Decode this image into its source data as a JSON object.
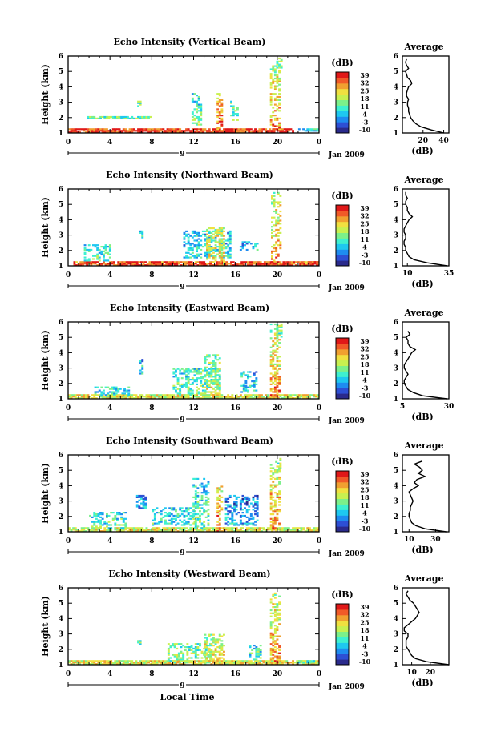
{
  "figure": {
    "bottom_label": "Local Time",
    "date_label": "Jan 2009",
    "day_label": "9",
    "colorbar_unit": "(dB)",
    "colorbar_ticks": [
      "39",
      "32",
      "25",
      "18",
      "11",
      "4",
      "-3",
      "-10"
    ],
    "colorscale": [
      "#2a2a8c",
      "#2d4fd4",
      "#1e8cf0",
      "#1ec8f0",
      "#3ef0d0",
      "#7cf08a",
      "#c8f050",
      "#f0e040",
      "#f0a030",
      "#f05a28",
      "#e01818"
    ],
    "avg_title": "Average",
    "avg_xlabel": "(dB)"
  },
  "chart_data": [
    {
      "type": "heatmap",
      "title": "Echo Intensity (Vertical Beam)",
      "ylabel": "Height (km)",
      "xticks": [
        "0",
        "4",
        "8",
        "12",
        "16",
        "20",
        "0"
      ],
      "yticks": [
        "1",
        "2",
        "3",
        "4",
        "5",
        "6"
      ],
      "xlim": [
        0,
        24
      ],
      "ylim": [
        1,
        6
      ],
      "clim": [
        -10,
        39
      ],
      "features": [
        {
          "t0": 0.0,
          "t1": 21.5,
          "h0": 1.0,
          "h1": 1.3,
          "db": 35
        },
        {
          "t0": 1.6,
          "t1": 8.0,
          "h0": 1.9,
          "h1": 2.1,
          "db": 13
        },
        {
          "t0": 6.6,
          "t1": 6.9,
          "h0": 2.7,
          "h1": 3.2,
          "db": 15
        },
        {
          "t0": 11.8,
          "t1": 12.6,
          "h0": 1.5,
          "h1": 3.6,
          "db": 14
        },
        {
          "t0": 14.2,
          "t1": 14.7,
          "h0": 1.0,
          "h1": 3.6,
          "db": 33
        },
        {
          "t0": 15.5,
          "t1": 16.2,
          "h0": 1.8,
          "h1": 3.1,
          "db": 14
        },
        {
          "t0": 19.3,
          "t1": 20.1,
          "h0": 1.1,
          "h1": 5.3,
          "db": 30
        },
        {
          "t0": 19.9,
          "t1": 20.4,
          "h0": 5.2,
          "h1": 5.8,
          "db": 16
        },
        {
          "t0": 22.0,
          "t1": 24.0,
          "h0": 1.1,
          "h1": 1.3,
          "db": 8
        }
      ],
      "average": {
        "xlim": [
          0,
          45
        ],
        "xticks": [
          "20",
          "40"
        ],
        "ylim": [
          1,
          6
        ],
        "height": [
          1.0,
          1.2,
          1.4,
          1.6,
          1.8,
          2.0,
          2.2,
          2.4,
          2.6,
          2.8,
          3.0,
          3.2,
          3.4,
          3.6,
          3.8,
          4.0,
          4.2,
          4.4,
          4.6,
          4.8,
          5.0,
          5.2,
          5.4,
          5.6,
          5.8
        ],
        "db": [
          40,
          28,
          18,
          13,
          10,
          8,
          7,
          6,
          6,
          5,
          5,
          6,
          4,
          4,
          5,
          6,
          9,
          8,
          5,
          4,
          3,
          6,
          4,
          3,
          4
        ]
      }
    },
    {
      "type": "heatmap",
      "title": "Echo Intensity (Northward Beam)",
      "ylabel": "Height (km)",
      "xticks": [
        "0",
        "4",
        "8",
        "12",
        "16",
        "20",
        "0"
      ],
      "yticks": [
        "1",
        "2",
        "3",
        "4",
        "5",
        "6"
      ],
      "xlim": [
        0,
        24
      ],
      "ylim": [
        1,
        6
      ],
      "clim": [
        -10,
        39
      ],
      "features": [
        {
          "t0": 0.5,
          "t1": 24.0,
          "h0": 1.0,
          "h1": 1.3,
          "db": 34
        },
        {
          "t0": 1.5,
          "t1": 4.0,
          "h0": 1.3,
          "h1": 2.4,
          "db": 12
        },
        {
          "t0": 6.8,
          "t1": 7.1,
          "h0": 2.5,
          "h1": 3.3,
          "db": 8
        },
        {
          "t0": 11.0,
          "t1": 15.5,
          "h0": 1.5,
          "h1": 3.3,
          "db": 9
        },
        {
          "t0": 13.2,
          "t1": 14.8,
          "h0": 1.0,
          "h1": 3.5,
          "db": 24
        },
        {
          "t0": 16.0,
          "t1": 18.0,
          "h0": 2.0,
          "h1": 2.6,
          "db": 6
        },
        {
          "t0": 19.4,
          "t1": 20.2,
          "h0": 1.1,
          "h1": 5.7,
          "db": 30
        },
        {
          "t0": 22.5,
          "t1": 24.0,
          "h0": 1.1,
          "h1": 1.3,
          "db": 32
        }
      ],
      "average": {
        "xlim": [
          7,
          35
        ],
        "xticks": [
          "10",
          "35"
        ],
        "ylim": [
          1,
          6
        ],
        "height": [
          1.0,
          1.2,
          1.4,
          1.6,
          1.8,
          2.0,
          2.2,
          2.4,
          2.6,
          2.8,
          3.0,
          3.2,
          3.4,
          3.6,
          3.8,
          4.0,
          4.2,
          4.4,
          4.6,
          4.8,
          5.0,
          5.2,
          5.4,
          5.6,
          5.8
        ],
        "db": [
          34,
          22,
          14,
          11,
          10,
          9,
          9,
          8,
          8,
          9,
          9,
          8,
          8,
          9,
          10,
          11,
          13,
          11,
          10,
          10,
          9,
          9,
          10,
          9,
          9
        ]
      }
    },
    {
      "type": "heatmap",
      "title": "Echo Intensity (Eastward Beam)",
      "ylabel": "Height (km)",
      "xticks": [
        "0",
        "4",
        "8",
        "12",
        "16",
        "20",
        "0"
      ],
      "yticks": [
        "1",
        "2",
        "3",
        "4",
        "5",
        "6"
      ],
      "xlim": [
        0,
        24
      ],
      "ylim": [
        1,
        6
      ],
      "clim": [
        -10,
        39
      ],
      "features": [
        {
          "t0": 0.0,
          "t1": 24.0,
          "h0": 1.0,
          "h1": 1.3,
          "db": 22
        },
        {
          "t0": 2.5,
          "t1": 5.8,
          "h0": 1.2,
          "h1": 1.8,
          "db": 10
        },
        {
          "t0": 6.8,
          "t1": 7.1,
          "h0": 2.6,
          "h1": 3.6,
          "db": 6
        },
        {
          "t0": 10.0,
          "t1": 14.5,
          "h0": 1.2,
          "h1": 3.0,
          "db": 14
        },
        {
          "t0": 13.0,
          "t1": 14.5,
          "h0": 1.2,
          "h1": 3.9,
          "db": 20
        },
        {
          "t0": 16.5,
          "t1": 18.0,
          "h0": 1.4,
          "h1": 2.8,
          "db": 9
        },
        {
          "t0": 19.3,
          "t1": 20.2,
          "h0": 1.1,
          "h1": 5.8,
          "db": 30
        },
        {
          "t0": 19.9,
          "t1": 20.4,
          "h0": 5.0,
          "h1": 5.8,
          "db": 16
        }
      ],
      "average": {
        "xlim": [
          5,
          30
        ],
        "xticks": [
          "5",
          "30"
        ],
        "ylim": [
          1,
          6
        ],
        "height": [
          1.0,
          1.2,
          1.4,
          1.6,
          1.8,
          2.0,
          2.2,
          2.4,
          2.6,
          2.8,
          3.0,
          3.2,
          3.4,
          3.6,
          3.8,
          4.0,
          4.2,
          4.4,
          4.6,
          4.8,
          5.0,
          5.2,
          5.4
        ],
        "db": [
          29,
          16,
          11,
          8,
          7,
          6,
          6,
          7,
          8,
          7,
          6,
          6,
          7,
          8,
          9,
          10,
          12,
          9,
          8,
          8,
          7,
          9,
          8
        ]
      }
    },
    {
      "type": "heatmap",
      "title": "Echo Intensity (Southward Beam)",
      "ylabel": "Height (km)",
      "xticks": [
        "0",
        "4",
        "8",
        "12",
        "16",
        "20",
        "0"
      ],
      "yticks": [
        "1",
        "2",
        "3",
        "4",
        "5",
        "6"
      ],
      "xlim": [
        0,
        24
      ],
      "ylim": [
        1,
        6
      ],
      "clim": [
        -10,
        39
      ],
      "features": [
        {
          "t0": 0.0,
          "t1": 24.0,
          "h0": 1.0,
          "h1": 1.3,
          "db": 21
        },
        {
          "t0": 2.0,
          "t1": 5.5,
          "h0": 1.2,
          "h1": 2.3,
          "db": 12
        },
        {
          "t0": 6.5,
          "t1": 7.5,
          "h0": 2.5,
          "h1": 3.4,
          "db": 5
        },
        {
          "t0": 8.0,
          "t1": 12.0,
          "h0": 1.4,
          "h1": 2.6,
          "db": 10
        },
        {
          "t0": 11.9,
          "t1": 13.4,
          "h0": 1.2,
          "h1": 4.5,
          "db": 14
        },
        {
          "t0": 14.2,
          "t1": 14.7,
          "h0": 1.0,
          "h1": 4.0,
          "db": 30
        },
        {
          "t0": 15.0,
          "t1": 18.0,
          "h0": 1.4,
          "h1": 3.4,
          "db": 6
        },
        {
          "t0": 19.3,
          "t1": 20.2,
          "h0": 1.1,
          "h1": 5.3,
          "db": 30
        },
        {
          "t0": 19.8,
          "t1": 20.4,
          "h0": 5.0,
          "h1": 5.7,
          "db": 16
        }
      ],
      "average": {
        "xlim": [
          5,
          40
        ],
        "xticks": [
          "10",
          "30"
        ],
        "ylim": [
          1,
          6
        ],
        "height": [
          1.0,
          1.2,
          1.4,
          1.6,
          1.8,
          2.0,
          2.2,
          2.4,
          2.6,
          2.8,
          3.0,
          3.2,
          3.4,
          3.6,
          3.8,
          4.0,
          4.2,
          4.4,
          4.6,
          4.8,
          5.0,
          5.2,
          5.4,
          5.6
        ],
        "db": [
          38,
          22,
          15,
          12,
          11,
          10,
          10,
          11,
          11,
          12,
          13,
          12,
          11,
          10,
          13,
          17,
          14,
          16,
          22,
          17,
          20,
          18,
          14,
          20
        ]
      }
    },
    {
      "type": "heatmap",
      "title": "Echo Intensity (Westward Beam)",
      "ylabel": "Height (km)",
      "xlabel": "Local Time",
      "xticks": [
        "0",
        "4",
        "8",
        "12",
        "16",
        "20",
        "0"
      ],
      "yticks": [
        "1",
        "2",
        "3",
        "4",
        "5",
        "6"
      ],
      "xlim": [
        0,
        24
      ],
      "ylim": [
        1,
        6
      ],
      "clim": [
        -10,
        39
      ],
      "features": [
        {
          "t0": 0.0,
          "t1": 24.0,
          "h0": 1.0,
          "h1": 1.3,
          "db": 22
        },
        {
          "t0": 6.6,
          "t1": 7.0,
          "h0": 2.3,
          "h1": 2.6,
          "db": 12
        },
        {
          "t0": 9.5,
          "t1": 13.5,
          "h0": 1.1,
          "h1": 2.4,
          "db": 16
        },
        {
          "t0": 13.0,
          "t1": 14.8,
          "h0": 1.1,
          "h1": 3.0,
          "db": 22
        },
        {
          "t0": 17.3,
          "t1": 18.3,
          "h0": 1.1,
          "h1": 2.3,
          "db": 12
        },
        {
          "t0": 19.3,
          "t1": 20.2,
          "h0": 1.1,
          "h1": 5.6,
          "db": 30
        },
        {
          "t0": 22.0,
          "t1": 24.0,
          "h0": 1.1,
          "h1": 1.3,
          "db": 14
        }
      ],
      "average": {
        "xlim": [
          5,
          30
        ],
        "xticks": [
          "10",
          "20"
        ],
        "ylim": [
          1,
          6
        ],
        "height": [
          1.0,
          1.2,
          1.4,
          1.6,
          1.8,
          2.0,
          2.2,
          2.4,
          2.6,
          2.8,
          3.0,
          3.2,
          3.4,
          3.6,
          3.8,
          4.0,
          4.2,
          4.4,
          4.6,
          4.8,
          5.0,
          5.2,
          5.4,
          5.6,
          5.8
        ],
        "db": [
          30,
          18,
          12,
          10,
          9,
          8,
          7,
          7,
          7,
          8,
          8,
          6,
          6,
          8,
          10,
          12,
          13,
          14,
          13,
          12,
          11,
          9,
          8,
          7,
          8
        ]
      }
    }
  ]
}
